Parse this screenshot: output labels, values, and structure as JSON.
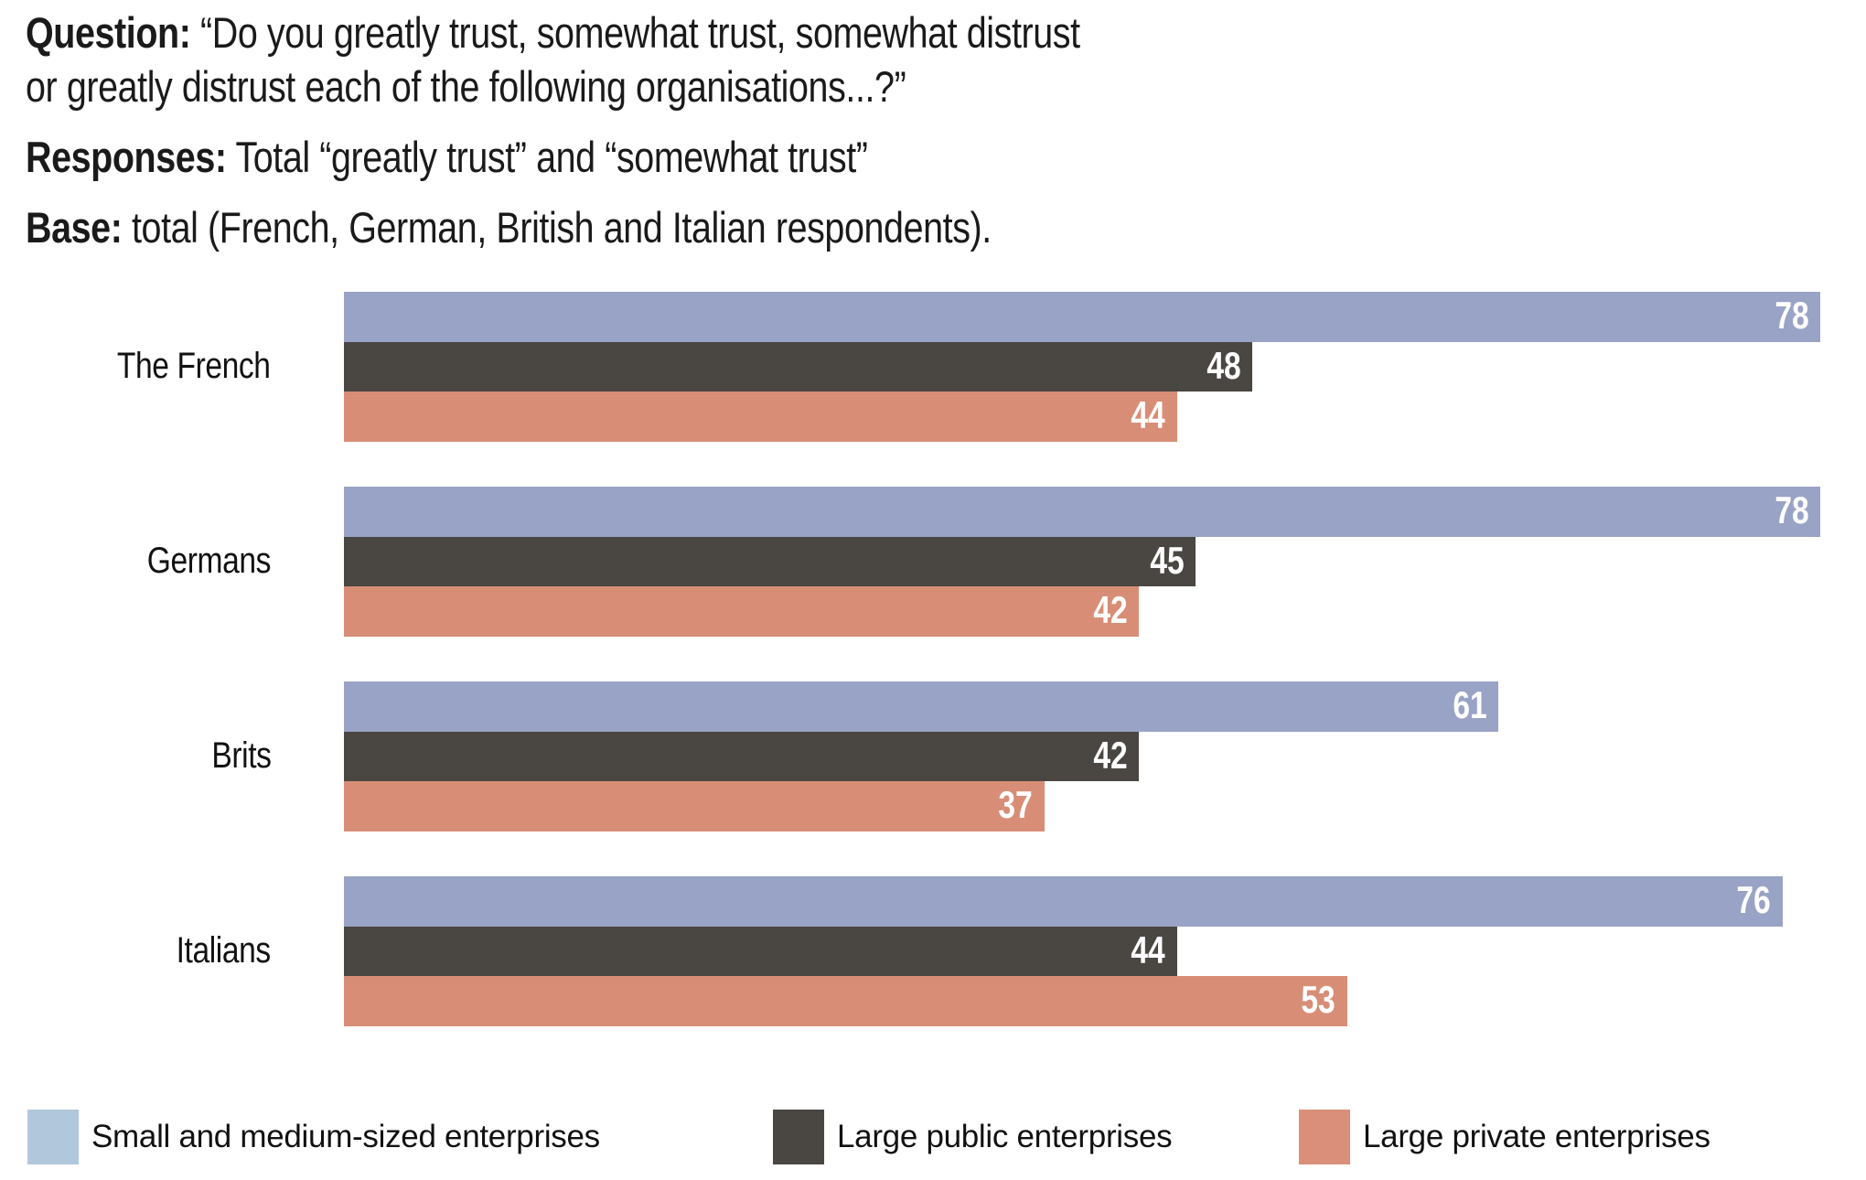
{
  "header": {
    "question_label": "Question:",
    "question_lines": [
      "“Do you greatly trust, somewhat trust, somewhat distrust",
      "or greatly distrust each of the following organisations...?”"
    ],
    "responses_label": "Responses:",
    "responses_text": "Total “greatly trust” and “somewhat trust”",
    "base_label": "Base:",
    "base_text": "total (French, German, British and Italian respondents)."
  },
  "chart_data": {
    "type": "bar",
    "orientation": "horizontal",
    "categories": [
      "The French",
      "Germans",
      "Brits",
      "Italians"
    ],
    "series": [
      {
        "name": "Small and medium-sized enterprises",
        "color": "#99a3c5",
        "legend_color": "#b1c7dc",
        "values": [
          78,
          78,
          61,
          76
        ]
      },
      {
        "name": "Large public enterprises",
        "color": "#4a4642",
        "legend_color": "#4a4642",
        "values": [
          48,
          45,
          42,
          44
        ]
      },
      {
        "name": "Large private enterprises",
        "color": "#d88e76",
        "legend_color": "#d98f79",
        "values": [
          44,
          42,
          37,
          53
        ]
      }
    ],
    "xlim": [
      0,
      80.4
    ],
    "value_labels": "inside-right",
    "value_label_color": "#ffffff",
    "grid": false,
    "legend_position": "bottom"
  }
}
